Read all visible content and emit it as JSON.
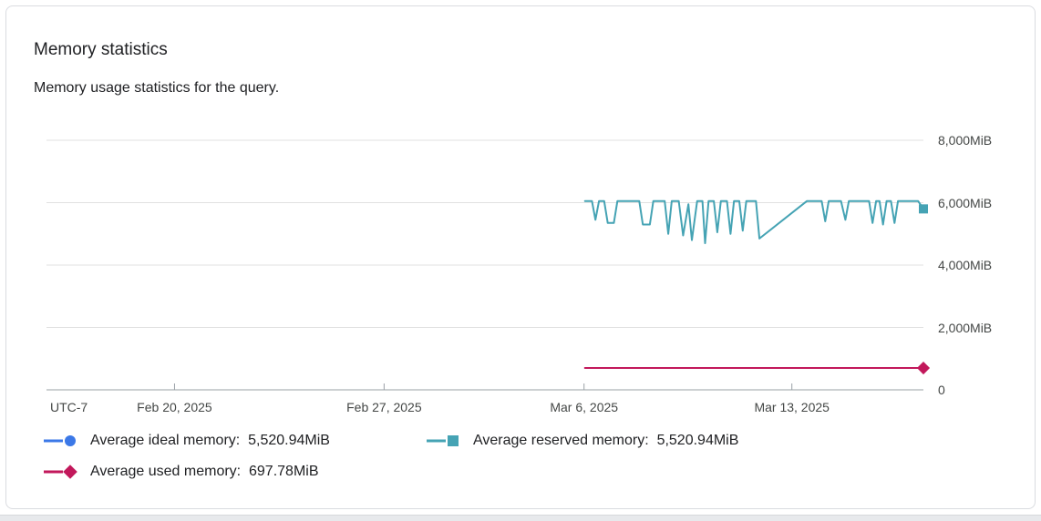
{
  "header": {
    "title": "Memory statistics",
    "subtitle": "Memory usage statistics for the query."
  },
  "colors": {
    "grid": "#E0E0E0",
    "axis": "#9AA0A6",
    "axis_text": "#444746",
    "text": "#202124",
    "card_border": "#DADCE0",
    "page_strip": "#E7E9EC"
  },
  "chart_data": {
    "type": "line",
    "title": "Memory statistics",
    "subtitle": "Memory usage statistics for the query.",
    "yunit": "MiB",
    "ylim": [
      0,
      8000
    ],
    "grid": true,
    "legend_position": "bottom",
    "x_encoding": "fraction of plot width (time axis, UTC-7)",
    "y_encoding": "MiB",
    "yticks": [
      {
        "value": 8000,
        "label": "8,000MiB"
      },
      {
        "value": 6000,
        "label": "6,000MiB"
      },
      {
        "value": 4000,
        "label": "4,000MiB"
      },
      {
        "value": 2000,
        "label": "2,000MiB"
      },
      {
        "value": 0,
        "label": "0"
      }
    ],
    "x_axis": {
      "timezone_label": "UTC-7",
      "ticks": [
        {
          "pos": 0.146,
          "label": "Feb 20, 2025"
        },
        {
          "pos": 0.385,
          "label": "Feb 27, 2025"
        },
        {
          "pos": 0.613,
          "label": "Mar 6, 2025"
        },
        {
          "pos": 0.85,
          "label": "Mar 13, 2025"
        }
      ]
    },
    "series": [
      {
        "name": "Average ideal memory",
        "avg": "5,520.94MiB",
        "color": "#3B78E7",
        "marker": "circle",
        "note": "line coincides with reserved-memory line and is hidden beneath it",
        "points": []
      },
      {
        "name": "Average reserved memory",
        "avg": "5,520.94MiB",
        "color": "#45A3B4",
        "marker": "square",
        "points": [
          [
            0.614,
            6050
          ],
          [
            0.622,
            6050
          ],
          [
            0.626,
            5450
          ],
          [
            0.63,
            6050
          ],
          [
            0.636,
            6050
          ],
          [
            0.64,
            5350
          ],
          [
            0.647,
            5350
          ],
          [
            0.651,
            6050
          ],
          [
            0.676,
            6050
          ],
          [
            0.68,
            5300
          ],
          [
            0.688,
            5300
          ],
          [
            0.692,
            6050
          ],
          [
            0.705,
            6050
          ],
          [
            0.709,
            5000
          ],
          [
            0.713,
            6050
          ],
          [
            0.721,
            6050
          ],
          [
            0.726,
            4950
          ],
          [
            0.732,
            5950
          ],
          [
            0.736,
            4800
          ],
          [
            0.742,
            6050
          ],
          [
            0.748,
            6050
          ],
          [
            0.751,
            4700
          ],
          [
            0.755,
            6050
          ],
          [
            0.761,
            6050
          ],
          [
            0.765,
            5050
          ],
          [
            0.769,
            6050
          ],
          [
            0.776,
            6050
          ],
          [
            0.78,
            5000
          ],
          [
            0.784,
            6050
          ],
          [
            0.79,
            6050
          ],
          [
            0.794,
            5100
          ],
          [
            0.798,
            6050
          ],
          [
            0.805,
            6050
          ],
          [
            0.809,
            6050
          ],
          [
            0.813,
            4850
          ],
          [
            0.867,
            6050
          ],
          [
            0.884,
            6050
          ],
          [
            0.888,
            5400
          ],
          [
            0.892,
            6050
          ],
          [
            0.906,
            6050
          ],
          [
            0.911,
            5450
          ],
          [
            0.915,
            6050
          ],
          [
            0.938,
            6050
          ],
          [
            0.942,
            5350
          ],
          [
            0.946,
            6050
          ],
          [
            0.95,
            6050
          ],
          [
            0.954,
            5300
          ],
          [
            0.958,
            6050
          ],
          [
            0.963,
            6050
          ],
          [
            0.967,
            5350
          ],
          [
            0.971,
            6050
          ],
          [
            0.994,
            6050
          ],
          [
            1.0,
            5800
          ]
        ]
      },
      {
        "name": "Average used memory",
        "avg": "697.78MiB",
        "color": "#C2185B",
        "marker": "diamond",
        "points": [
          [
            0.614,
            700
          ],
          [
            1.0,
            700
          ]
        ]
      }
    ]
  }
}
